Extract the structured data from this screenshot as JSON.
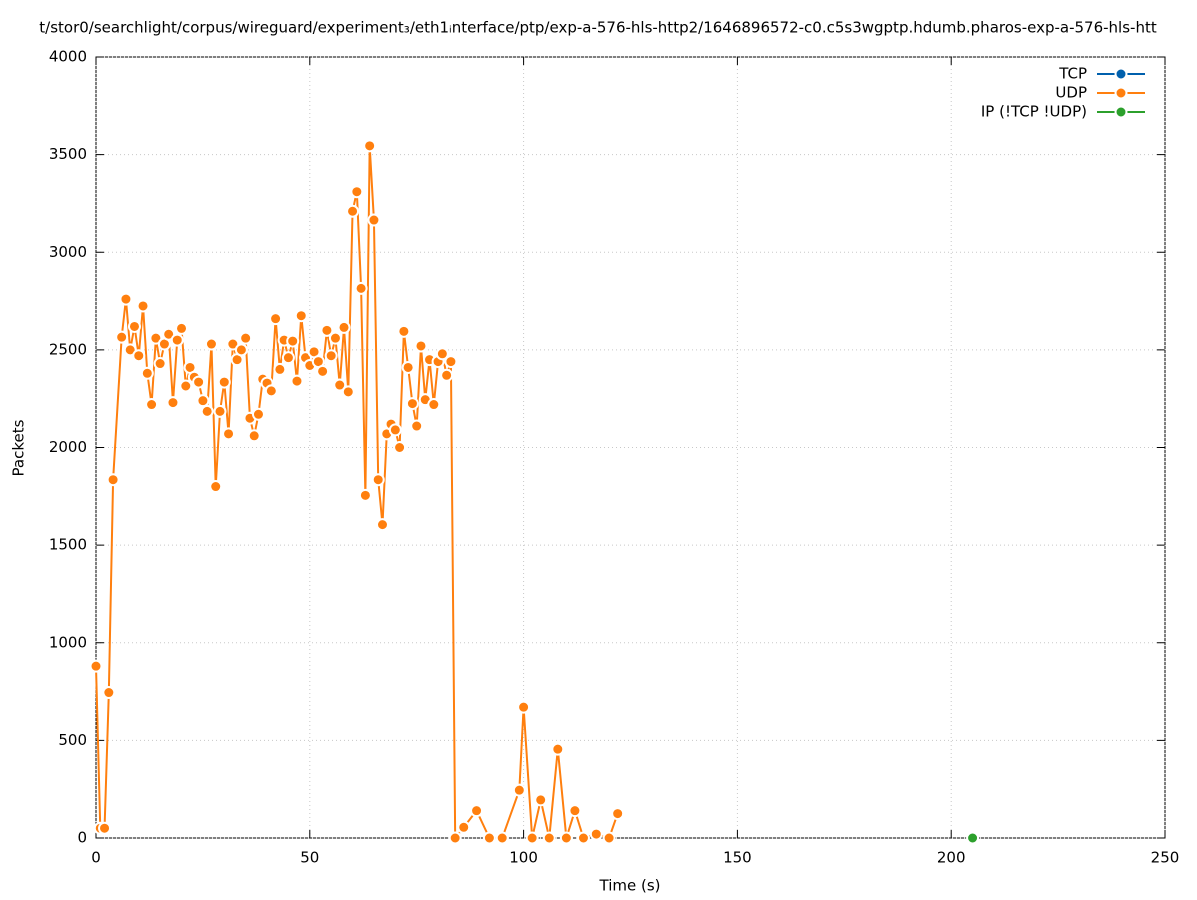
{
  "chart_data": {
    "type": "line",
    "title": "t/stor0/searchlight/corpus/wireguard/experiment₃/eth1ᵢnterface/ptp/exp-a-576-hls-http2/1646896572-c0.c5s3wgptp.hdumb.pharos-exp-a-576-hls-htt",
    "x_label": "Time (s)",
    "y_label": "Packets",
    "xlim": [
      0,
      250
    ],
    "xticks": [
      0,
      50,
      100,
      150,
      200,
      250
    ],
    "ylim": [
      0,
      4000
    ],
    "yticks": [
      0,
      500,
      1000,
      1500,
      2000,
      2500,
      3000,
      3500,
      4000
    ],
    "grid": true,
    "legend": "top-right",
    "series": [
      {
        "name": "TCP",
        "color": "#0060ad",
        "x": [],
        "values": []
      },
      {
        "name": "UDP",
        "color": "#ff7f0e",
        "x": [
          0,
          1,
          2,
          3,
          4,
          6,
          7,
          8,
          9,
          10,
          11,
          12,
          13,
          14,
          15,
          16,
          17,
          18,
          19,
          20,
          21,
          22,
          23,
          24,
          25,
          26,
          27,
          28,
          29,
          30,
          31,
          32,
          33,
          34,
          35,
          36,
          37,
          38,
          39,
          40,
          41,
          42,
          43,
          44,
          45,
          46,
          47,
          48,
          49,
          50,
          51,
          52,
          53,
          54,
          55,
          56,
          57,
          58,
          59,
          60,
          61,
          62,
          63,
          64,
          65,
          66,
          67,
          68,
          69,
          70,
          71,
          72,
          73,
          74,
          75,
          76,
          77,
          78,
          79,
          80,
          81,
          82,
          83,
          84,
          86,
          89,
          92,
          95,
          99,
          100,
          102,
          104,
          106,
          108,
          110,
          112,
          114,
          117,
          120,
          122
        ],
        "values": [
          880,
          50,
          50,
          745,
          1835,
          2565,
          2760,
          2500,
          2620,
          2470,
          2725,
          2380,
          2220,
          2560,
          2430,
          2530,
          2580,
          2230,
          2550,
          2610,
          2315,
          2410,
          2360,
          2335,
          2240,
          2185,
          2530,
          1800,
          2185,
          2335,
          2070,
          2530,
          2450,
          2500,
          2560,
          2150,
          2060,
          2170,
          2350,
          2330,
          2290,
          2660,
          2400,
          2550,
          2460,
          2545,
          2340,
          2675,
          2460,
          2420,
          2490,
          2440,
          2390,
          2600,
          2470,
          2560,
          2320,
          2615,
          2285,
          3210,
          3310,
          2815,
          1755,
          3545,
          3165,
          1835,
          1605,
          2070,
          2120,
          2090,
          2000,
          2595,
          2410,
          2225,
          2110,
          2520,
          2245,
          2450,
          2220,
          2440,
          2480,
          2370,
          2440,
          0,
          55,
          140,
          0,
          0,
          245,
          670,
          0,
          195,
          0,
          455,
          0,
          140,
          0,
          20,
          0,
          125
        ]
      },
      {
        "name": "IP (!TCP  !UDP)",
        "color": "#2ca02c",
        "x": [
          205
        ],
        "values": [
          0
        ]
      }
    ]
  }
}
